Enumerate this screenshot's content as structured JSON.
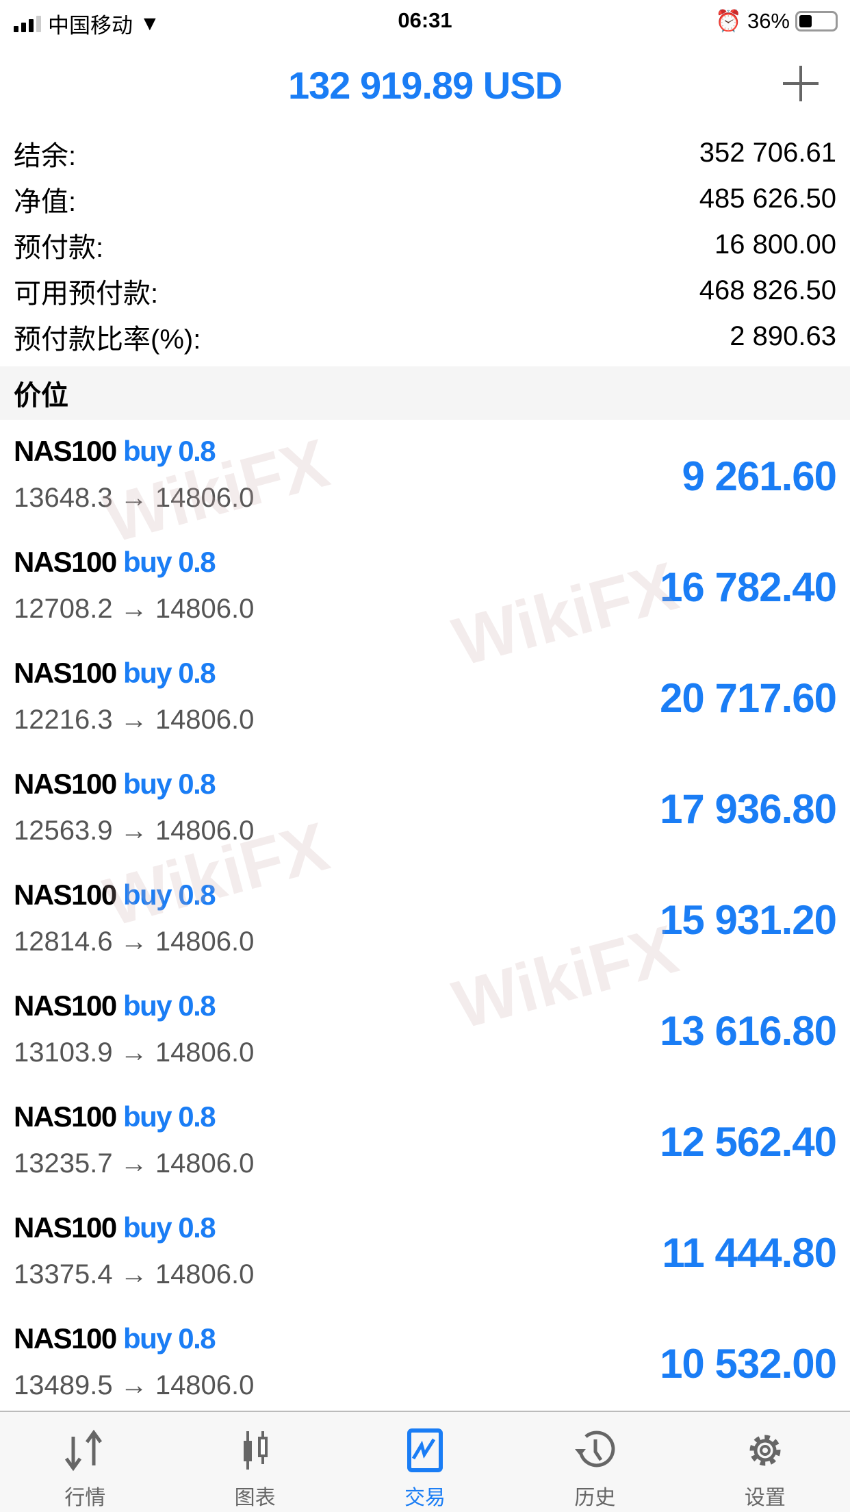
{
  "status_bar": {
    "carrier": "中国移动",
    "time": "06:31",
    "battery": "36%",
    "battery_level": 0.36
  },
  "header": {
    "title": "132 919.89 USD",
    "add_icon": "plus-icon"
  },
  "summary": [
    {
      "label": "结余:",
      "value": "352 706.61"
    },
    {
      "label": "净值:",
      "value": "485 626.50"
    },
    {
      "label": "预付款:",
      "value": "16 800.00"
    },
    {
      "label": "可用预付款:",
      "value": "468 826.50"
    },
    {
      "label": "预付款比率(%):",
      "value": "2 890.63"
    }
  ],
  "section_title": "价位",
  "positions": [
    {
      "symbol": "NAS100",
      "side": "buy 0.8",
      "prices": "13648.3 → 14806.0",
      "profit": "9 261.60"
    },
    {
      "symbol": "NAS100",
      "side": "buy 0.8",
      "prices": "12708.2 → 14806.0",
      "profit": "16 782.40"
    },
    {
      "symbol": "NAS100",
      "side": "buy 0.8",
      "prices": "12216.3 → 14806.0",
      "profit": "20 717.60"
    },
    {
      "symbol": "NAS100",
      "side": "buy 0.8",
      "prices": "12563.9 → 14806.0",
      "profit": "17 936.80"
    },
    {
      "symbol": "NAS100",
      "side": "buy 0.8",
      "prices": "12814.6 → 14806.0",
      "profit": "15 931.20"
    },
    {
      "symbol": "NAS100",
      "side": "buy 0.8",
      "prices": "13103.9 → 14806.0",
      "profit": "13 616.80"
    },
    {
      "symbol": "NAS100",
      "side": "buy 0.8",
      "prices": "13235.7 → 14806.0",
      "profit": "12 562.40"
    },
    {
      "symbol": "NAS100",
      "side": "buy 0.8",
      "prices": "13375.4 → 14806.0",
      "profit": "11 444.80"
    },
    {
      "symbol": "NAS100",
      "side": "buy 0.8",
      "prices": "13489.5 → 14806.0",
      "profit": "10 532.00"
    }
  ],
  "watermark": "WikiFX",
  "tabs": [
    {
      "label": "行情",
      "icon": "quotes-arrows-icon"
    },
    {
      "label": "图表",
      "icon": "candlestick-icon"
    },
    {
      "label": "交易",
      "icon": "trade-chart-icon",
      "active": true
    },
    {
      "label": "历史",
      "icon": "history-clock-icon"
    },
    {
      "label": "设置",
      "icon": "gear-icon"
    }
  ],
  "colors": {
    "accent": "#1a7df5",
    "tab_inactive": "#666666"
  }
}
